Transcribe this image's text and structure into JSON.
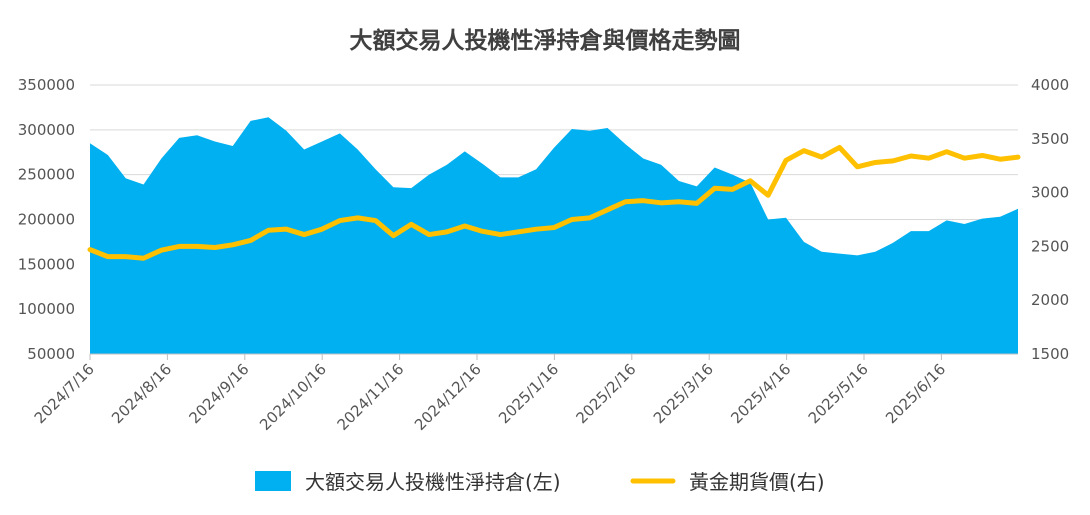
{
  "chart_data": {
    "type": "area+line",
    "title": "大額交易人投機性淨持倉與價格走勢圖",
    "x_tick_labels": [
      "2024/7/16",
      "2024/8/16",
      "2024/9/16",
      "2024/10/16",
      "2024/11/16",
      "2024/12/16",
      "2025/1/16",
      "2025/2/16",
      "2025/3/16",
      "2025/4/16",
      "2025/5/16",
      "2025/6/16"
    ],
    "y_left": {
      "ticks": [
        50000,
        100000,
        150000,
        200000,
        250000,
        300000,
        350000
      ],
      "range": [
        50000,
        350000
      ]
    },
    "y_right": {
      "ticks": [
        1500,
        2000,
        2500,
        3000,
        3500,
        4000
      ],
      "range": [
        1500,
        4000
      ]
    },
    "legend": {
      "position": "bottom"
    },
    "series": [
      {
        "name": "大額交易人投機性淨持倉(左)",
        "axis": "left",
        "type": "area",
        "color": "#00B0F0",
        "values": [
          285000,
          272000,
          246000,
          239000,
          268000,
          291000,
          294000,
          287000,
          282000,
          310000,
          314000,
          299000,
          278000,
          287000,
          296000,
          278000,
          256000,
          236000,
          235000,
          250000,
          261000,
          276000,
          262000,
          247000,
          247000,
          256000,
          280000,
          301000,
          299000,
          302000,
          284000,
          268000,
          261000,
          243000,
          237000,
          258000,
          250000,
          241000,
          200000,
          202000,
          175000,
          164000,
          162000,
          160000,
          164000,
          174000,
          187000,
          187000,
          199000,
          195000,
          201000,
          203000,
          212000
        ]
      },
      {
        "name": "黃金期貨價(右)",
        "axis": "right",
        "type": "line",
        "color": "#FFC000",
        "values": [
          2470,
          2405,
          2405,
          2390,
          2465,
          2500,
          2500,
          2490,
          2515,
          2555,
          2650,
          2660,
          2610,
          2660,
          2740,
          2765,
          2740,
          2600,
          2705,
          2610,
          2635,
          2690,
          2640,
          2610,
          2635,
          2660,
          2675,
          2750,
          2765,
          2840,
          2915,
          2925,
          2905,
          2915,
          2900,
          3040,
          3030,
          3110,
          2975,
          3300,
          3390,
          3330,
          3420,
          3240,
          3280,
          3295,
          3340,
          3320,
          3380,
          3320,
          3345,
          3310,
          3330
        ]
      }
    ]
  }
}
